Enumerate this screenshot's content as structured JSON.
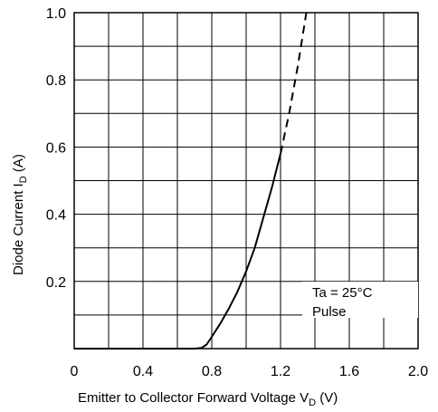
{
  "chart_data": {
    "type": "line",
    "title": "",
    "xlabel": {
      "main": "Emitter to Collector Forward Voltage  V",
      "sub": "D",
      "unit": "  (V)"
    },
    "ylabel": {
      "main": "Diode Current  I",
      "sub": "D",
      "unit": "  (A)"
    },
    "xlim": [
      0,
      2.0
    ],
    "ylim": [
      0,
      1.0
    ],
    "x_ticks": [
      {
        "v": 0,
        "label": "0"
      },
      {
        "v": 0.4,
        "label": "0.4"
      },
      {
        "v": 0.8,
        "label": "0.8"
      },
      {
        "v": 1.2,
        "label": "1.2"
      },
      {
        "v": 1.6,
        "label": "1.6"
      },
      {
        "v": 2.0,
        "label": "2.0"
      }
    ],
    "y_ticks": [
      {
        "v": 0.2,
        "label": "0.2"
      },
      {
        "v": 0.4,
        "label": "0.4"
      },
      {
        "v": 0.6,
        "label": "0.6"
      },
      {
        "v": 0.8,
        "label": "0.8"
      },
      {
        "v": 1.0,
        "label": "1.0"
      }
    ],
    "grid": true,
    "grid_step_x": 0.2,
    "grid_step_y": 0.1,
    "annotations": [
      "Ta = 25°C",
      "Pulse"
    ],
    "series": [
      {
        "style": "solid",
        "points": [
          [
            0,
            0
          ],
          [
            0.7,
            0
          ],
          [
            0.74,
            0.002
          ],
          [
            0.77,
            0.012
          ],
          [
            0.8,
            0.035
          ],
          [
            0.85,
            0.075
          ],
          [
            0.9,
            0.12
          ],
          [
            0.95,
            0.17
          ],
          [
            1.0,
            0.23
          ],
          [
            1.05,
            0.3
          ],
          [
            1.1,
            0.39
          ],
          [
            1.15,
            0.48
          ],
          [
            1.2,
            0.58
          ]
        ]
      },
      {
        "style": "dashed",
        "points": [
          [
            1.2,
            0.58
          ],
          [
            1.25,
            0.7
          ],
          [
            1.3,
            0.84
          ],
          [
            1.35,
            1.0
          ]
        ]
      }
    ]
  }
}
